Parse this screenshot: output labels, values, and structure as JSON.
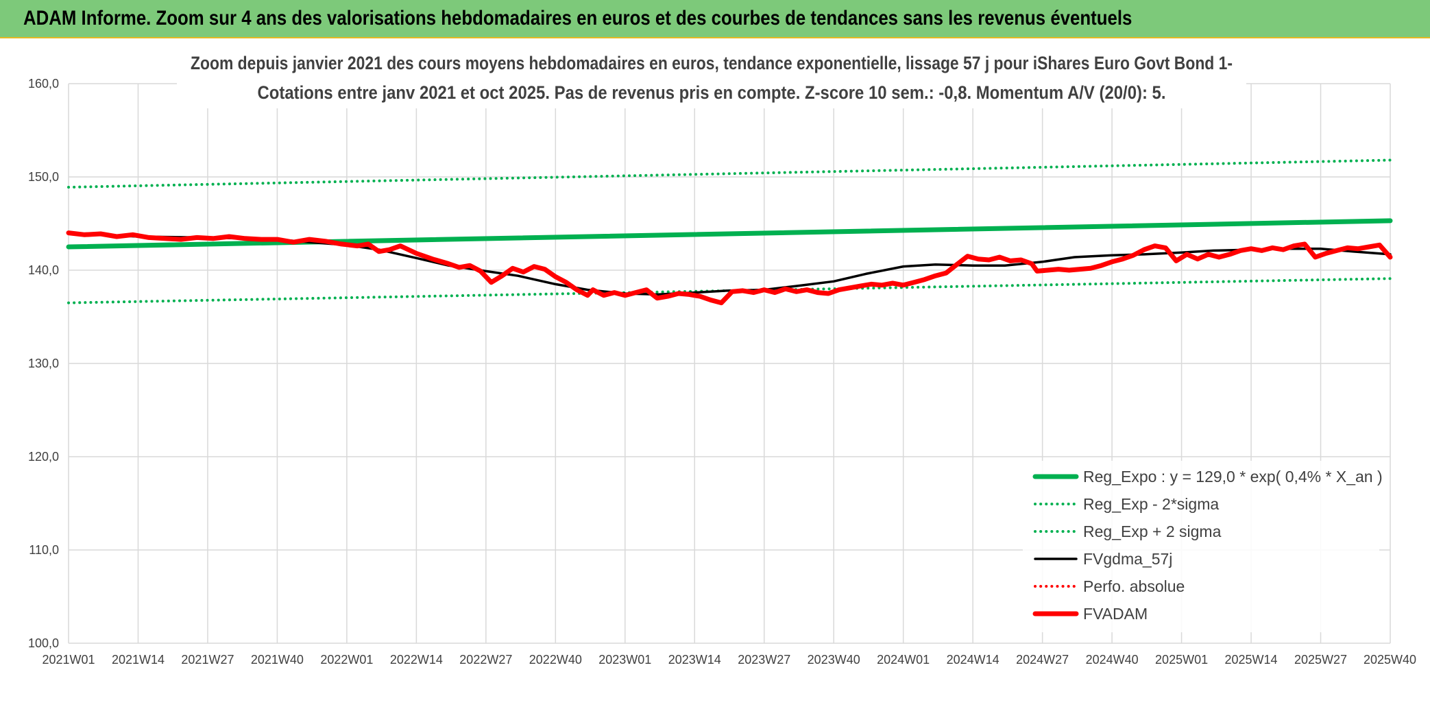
{
  "header": {
    "title": "ADAM Informe. Zoom sur 4 ans des valorisations hebdomadaires en euros et des courbes de tendances sans les revenus éventuels"
  },
  "chart_data": {
    "type": "line",
    "title_lines": [
      "Zoom depuis janvier 2021 des cours moyens hebdomadaires en euros, tendance exponentielle, lissage 57 j pour iShares Euro Govt Bond 1-",
      "Cotations entre janv 2021 et oct 2025. Pas de revenus pris en compte. Z-score 10 sem.: -0,8. Momentum A/V (20/0): 5."
    ],
    "xlabel": "",
    "ylabel": "",
    "ylim": [
      100,
      160
    ],
    "yticks": [
      "100,0",
      "110,0",
      "120,0",
      "130,0",
      "140,0",
      "150,0",
      "160,0"
    ],
    "x_tick_labels": [
      "2021W01",
      "2021W14",
      "2021W27",
      "2021W40",
      "2022W01",
      "2022W14",
      "2022W27",
      "2022W40",
      "2023W01",
      "2023W14",
      "2023W27",
      "2023W40",
      "2024W01",
      "2024W14",
      "2024W27",
      "2024W40",
      "2025W01",
      "2025W14",
      "2025W27",
      "2025W40"
    ],
    "x_range_weeks": [
      0,
      247
    ],
    "grid": true,
    "legend_position": "bottom-right",
    "colors": {
      "green": "#00b050",
      "black": "#000000",
      "red": "#ff0000",
      "text": "#404040",
      "grid": "#d9d9d9"
    },
    "series": [
      {
        "name": "Reg_Expo : y = 129,0 * exp( 0,4% *  X_an )",
        "style": "solid-thick",
        "color": "#00b050",
        "points": [
          [
            0,
            142.5
          ],
          [
            247,
            145.3
          ]
        ]
      },
      {
        "name": "Reg_Exp - 2*sigma",
        "style": "dotted",
        "color": "#00b050",
        "points": [
          [
            0,
            136.5
          ],
          [
            247,
            139.1
          ]
        ]
      },
      {
        "name": "Reg_Exp + 2 sigma",
        "style": "dotted",
        "color": "#00b050",
        "points": [
          [
            0,
            148.9
          ],
          [
            247,
            151.8
          ]
        ]
      },
      {
        "name": "FVgdma_57j",
        "style": "solid",
        "color": "#000000",
        "points": [
          [
            0,
            144.0
          ],
          [
            13,
            143.6
          ],
          [
            26,
            143.5
          ],
          [
            39,
            143.3
          ],
          [
            45,
            143.0
          ],
          [
            52,
            142.7
          ],
          [
            58,
            142.2
          ],
          [
            65,
            141.3
          ],
          [
            71,
            140.5
          ],
          [
            78,
            139.9
          ],
          [
            84,
            139.4
          ],
          [
            91,
            138.5
          ],
          [
            97,
            137.9
          ],
          [
            104,
            137.5
          ],
          [
            110,
            137.4
          ],
          [
            117,
            137.6
          ],
          [
            123,
            137.8
          ],
          [
            130,
            137.9
          ],
          [
            136,
            138.3
          ],
          [
            143,
            138.8
          ],
          [
            149,
            139.6
          ],
          [
            156,
            140.4
          ],
          [
            162,
            140.6
          ],
          [
            169,
            140.5
          ],
          [
            175,
            140.5
          ],
          [
            182,
            140.9
          ],
          [
            188,
            141.4
          ],
          [
            195,
            141.6
          ],
          [
            201,
            141.7
          ],
          [
            208,
            141.9
          ],
          [
            214,
            142.1
          ],
          [
            221,
            142.2
          ],
          [
            227,
            142.3
          ],
          [
            234,
            142.3
          ],
          [
            240,
            142.0
          ],
          [
            247,
            141.7
          ]
        ]
      },
      {
        "name": "Perfo. absolue",
        "style": "dotted",
        "color": "#ff0000",
        "points": []
      },
      {
        "name": "FVADAM",
        "style": "solid-thick",
        "color": "#ff0000",
        "points": [
          [
            0,
            144.0
          ],
          [
            3,
            143.8
          ],
          [
            6,
            143.9
          ],
          [
            9,
            143.6
          ],
          [
            12,
            143.8
          ],
          [
            15,
            143.5
          ],
          [
            18,
            143.4
          ],
          [
            21,
            143.3
          ],
          [
            24,
            143.5
          ],
          [
            27,
            143.4
          ],
          [
            30,
            143.6
          ],
          [
            33,
            143.4
          ],
          [
            36,
            143.3
          ],
          [
            39,
            143.3
          ],
          [
            42,
            143.0
          ],
          [
            45,
            143.3
          ],
          [
            48,
            143.1
          ],
          [
            51,
            142.8
          ],
          [
            54,
            142.6
          ],
          [
            56,
            142.8
          ],
          [
            58,
            142.0
          ],
          [
            60,
            142.2
          ],
          [
            62,
            142.6
          ],
          [
            65,
            141.8
          ],
          [
            68,
            141.2
          ],
          [
            71,
            140.7
          ],
          [
            73,
            140.3
          ],
          [
            75,
            140.5
          ],
          [
            77,
            139.9
          ],
          [
            79,
            138.7
          ],
          [
            81,
            139.4
          ],
          [
            83,
            140.2
          ],
          [
            85,
            139.8
          ],
          [
            87,
            140.4
          ],
          [
            89,
            140.1
          ],
          [
            91,
            139.3
          ],
          [
            93,
            138.7
          ],
          [
            95,
            137.9
          ],
          [
            97,
            137.3
          ],
          [
            98,
            137.9
          ],
          [
            100,
            137.3
          ],
          [
            102,
            137.6
          ],
          [
            104,
            137.3
          ],
          [
            106,
            137.6
          ],
          [
            108,
            137.9
          ],
          [
            110,
            137.0
          ],
          [
            112,
            137.2
          ],
          [
            114,
            137.5
          ],
          [
            116,
            137.4
          ],
          [
            118,
            137.2
          ],
          [
            120,
            136.8
          ],
          [
            122,
            136.5
          ],
          [
            124,
            137.7
          ],
          [
            126,
            137.8
          ],
          [
            128,
            137.6
          ],
          [
            130,
            137.9
          ],
          [
            132,
            137.6
          ],
          [
            134,
            138.0
          ],
          [
            136,
            137.7
          ],
          [
            138,
            137.9
          ],
          [
            140,
            137.6
          ],
          [
            142,
            137.5
          ],
          [
            144,
            137.9
          ],
          [
            146,
            138.1
          ],
          [
            148,
            138.3
          ],
          [
            150,
            138.5
          ],
          [
            152,
            138.4
          ],
          [
            154,
            138.6
          ],
          [
            156,
            138.4
          ],
          [
            158,
            138.7
          ],
          [
            160,
            139.0
          ],
          [
            162,
            139.4
          ],
          [
            164,
            139.7
          ],
          [
            166,
            140.6
          ],
          [
            168,
            141.5
          ],
          [
            170,
            141.2
          ],
          [
            172,
            141.1
          ],
          [
            174,
            141.4
          ],
          [
            176,
            141.0
          ],
          [
            178,
            141.1
          ],
          [
            180,
            140.7
          ],
          [
            181,
            139.9
          ],
          [
            183,
            140.0
          ],
          [
            185,
            140.1
          ],
          [
            187,
            140.0
          ],
          [
            189,
            140.1
          ],
          [
            191,
            140.2
          ],
          [
            193,
            140.5
          ],
          [
            195,
            140.9
          ],
          [
            197,
            141.2
          ],
          [
            199,
            141.6
          ],
          [
            201,
            142.2
          ],
          [
            203,
            142.6
          ],
          [
            205,
            142.4
          ],
          [
            207,
            141.0
          ],
          [
            209,
            141.7
          ],
          [
            211,
            141.2
          ],
          [
            213,
            141.7
          ],
          [
            215,
            141.4
          ],
          [
            217,
            141.7
          ],
          [
            219,
            142.1
          ],
          [
            221,
            142.3
          ],
          [
            223,
            142.1
          ],
          [
            225,
            142.4
          ],
          [
            227,
            142.2
          ],
          [
            229,
            142.6
          ],
          [
            231,
            142.8
          ],
          [
            233,
            141.4
          ],
          [
            235,
            141.8
          ],
          [
            237,
            142.1
          ],
          [
            239,
            142.4
          ],
          [
            241,
            142.3
          ],
          [
            243,
            142.5
          ],
          [
            245,
            142.7
          ],
          [
            247,
            141.4
          ]
        ]
      }
    ]
  }
}
